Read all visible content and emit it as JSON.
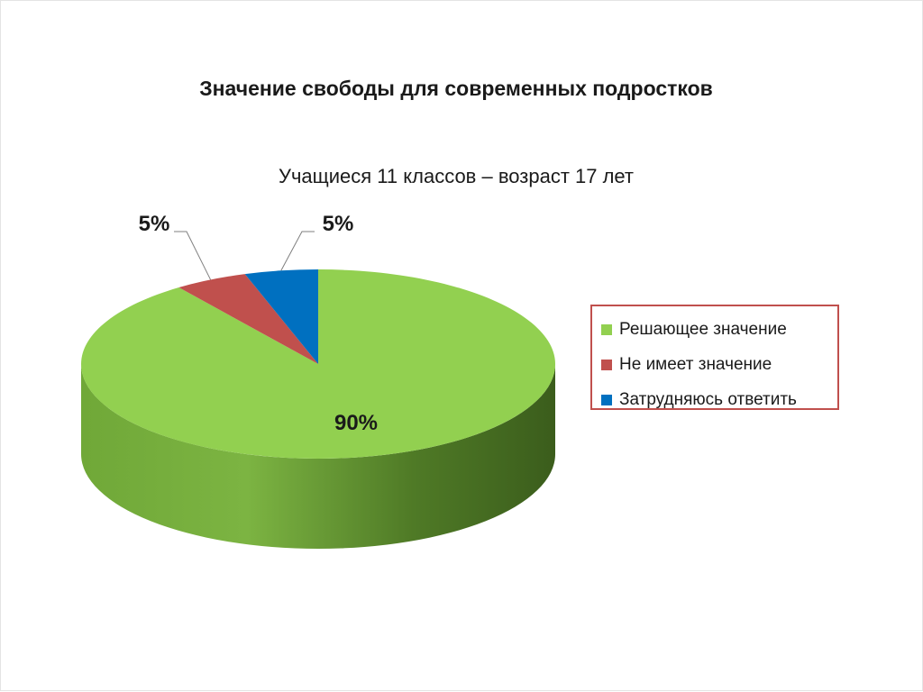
{
  "chart_data": {
    "type": "pie",
    "title": "Значение свободы для современных подростков",
    "subtitle": "Учащиеся 11 классов – возраст 17 лет",
    "categories": [
      "Решающее значение",
      "Не имеет значение",
      "Затрудняюсь ответить"
    ],
    "values": [
      90,
      5,
      5
    ],
    "data_labels": [
      "90%",
      "5%",
      "5%"
    ],
    "colors": [
      "#92d050",
      "#c0504d",
      "#0070c0"
    ],
    "style": "3d",
    "legend_position": "right"
  }
}
